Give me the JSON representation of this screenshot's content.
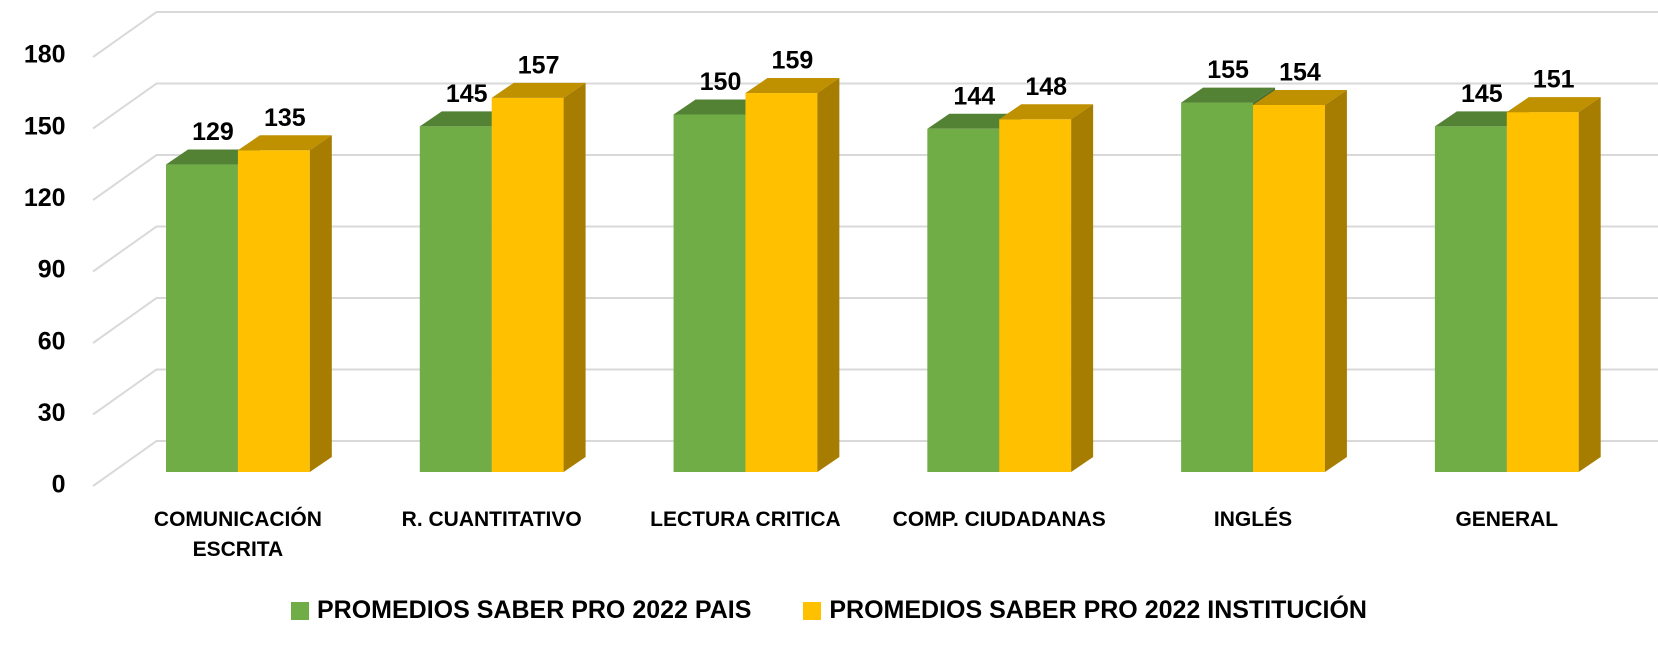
{
  "chart_data": {
    "type": "bar3d",
    "categories": [
      "COMUNICACIÓN ESCRITA",
      "R. CUANTITATIVO",
      "LECTURA CRITICA",
      "COMP. CIUDADANAS",
      "INGLÉS",
      "GENERAL"
    ],
    "series": [
      {
        "name": "PROMEDIOS SABER PRO 2022 PAIS",
        "color": "#70ad47",
        "values": [
          129,
          145,
          150,
          144,
          155,
          145
        ]
      },
      {
        "name": "PROMEDIOS SABER PRO 2022 INSTITUCIÓN",
        "color": "#ffc000",
        "values": [
          135,
          157,
          159,
          148,
          154,
          151
        ]
      }
    ],
    "ylim": [
      0,
      180
    ],
    "yticks": [
      0,
      30,
      60,
      90,
      120,
      150,
      180
    ],
    "grid": true,
    "legend": "bottom"
  }
}
